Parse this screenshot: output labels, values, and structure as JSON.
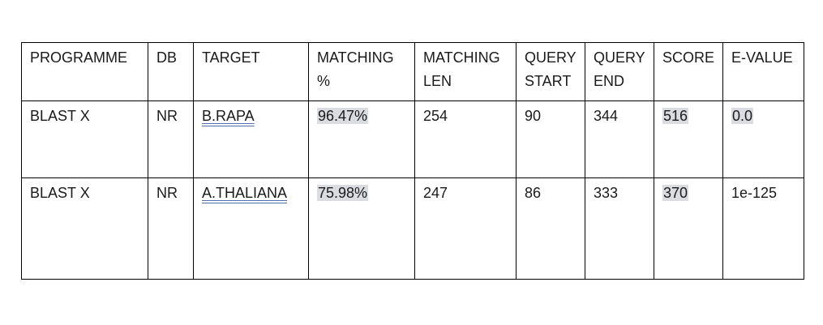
{
  "table": {
    "headers": [
      "PROGRAMME",
      "DB",
      "TARGET",
      "MATCHING %",
      "MATCHING LEN",
      "QUERY START",
      "QUERY END",
      "SCORE",
      "E-VALUE"
    ],
    "rows": [
      {
        "programme": "BLAST X",
        "db": "NR",
        "target": "B.RAPA",
        "matching_pct": "96.47%",
        "matching_len": "254",
        "query_start": "90",
        "query_end": "344",
        "score": "516",
        "e_value": "0.0"
      },
      {
        "programme": "BLAST X",
        "db": "NR",
        "target": "A.THALIANA",
        "matching_pct": "75.98%",
        "matching_len": "247",
        "query_start": "86",
        "query_end": "333",
        "score": "370",
        "e_value": "1e-125"
      }
    ]
  },
  "colors": {
    "highlight": "#d9dde1",
    "link_underline": "#4f6fb0",
    "border": "#000000"
  }
}
